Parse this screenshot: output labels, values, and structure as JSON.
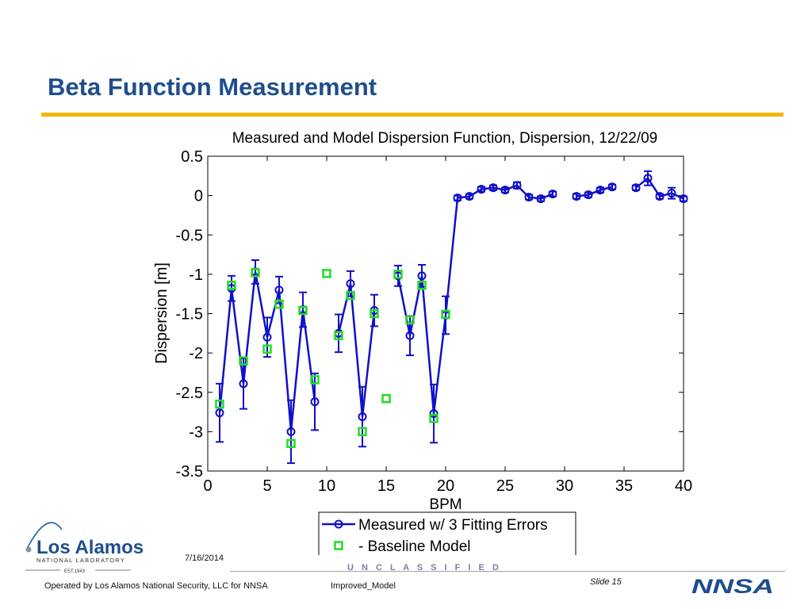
{
  "slide": {
    "title": "Beta Function Measurement",
    "date": "7/16/2014",
    "classification": "U N C L A S S I F I E D",
    "slide_number": "Slide 15",
    "operator": "Operated by Los Alamos National Security, LLC for NNSA",
    "filename": "Improved_Model"
  },
  "logo": {
    "name_main": "Los Alamos",
    "name_sub": "NATIONAL LABORATORY",
    "established": "EST.1943",
    "partner_logo_text": "NNSA"
  },
  "colors": {
    "title": "#1f4e8c",
    "rule": "#f5b800",
    "measured": "#1010c8",
    "baseline": "#22dd22"
  },
  "chart_data": {
    "type": "line",
    "title": "Measured and Model Dispersion Function, Dispersion, 12/22/09",
    "xlabel": "BPM",
    "ylabel": "Dispersion [m]",
    "xlim": [
      0,
      40
    ],
    "ylim": [
      -3.5,
      0.5
    ],
    "xticks": [
      "0",
      "5",
      "10",
      "15",
      "20",
      "25",
      "30",
      "35",
      "40"
    ],
    "yticks": [
      "0.5",
      "0",
      "-0.5",
      "-1",
      "-1.5",
      "-2",
      "-2.5",
      "-3",
      "-3.5"
    ],
    "grid": false,
    "legend_position": "bottom-right",
    "series": [
      {
        "name": "Measured w/ 3 Fitting Errors",
        "segments": [
          {
            "x": [
              1,
              2,
              3,
              4,
              5,
              6,
              7,
              8,
              9,
              10,
              11,
              12,
              13,
              14,
              15,
              16,
              17,
              18,
              19,
              20,
              21,
              22,
              23,
              24,
              25,
              26,
              27,
              28,
              29
            ],
            "y": [
              -2.76,
              -1.18,
              -2.39,
              -0.97,
              -1.8,
              -1.2,
              -3.0,
              -1.45,
              -2.62,
              null,
              -1.75,
              -1.12,
              -2.81,
              -1.46,
              null,
              -1.02,
              -1.78,
              -1.02,
              -2.77,
              -1.52,
              -0.03,
              -0.01,
              0.08,
              0.1,
              0.07,
              0.13,
              -0.02,
              -0.04,
              0.02
            ],
            "err": [
              0.37,
              0.16,
              0.32,
              0.15,
              0.25,
              0.17,
              0.4,
              0.22,
              0.36,
              null,
              0.24,
              0.16,
              0.38,
              0.2,
              null,
              0.13,
              0.25,
              0.14,
              0.37,
              0.24,
              0.03,
              0.03,
              0.03,
              0.03,
              0.03,
              0.04,
              0.03,
              0.03,
              0.03
            ]
          },
          {
            "x": [
              31,
              32,
              33,
              34
            ],
            "y": [
              -0.01,
              0.01,
              0.07,
              0.11
            ],
            "err": [
              0.03,
              0.03,
              0.03,
              0.03
            ]
          },
          {
            "x": [
              36,
              37,
              38,
              39,
              40
            ],
            "y": [
              0.1,
              0.22,
              -0.01,
              0.03,
              -0.04
            ],
            "err": [
              0.03,
              0.09,
              0.03,
              0.07,
              0.03
            ]
          }
        ]
      },
      {
        "name": "- Baseline Model",
        "x": [
          1,
          2,
          3,
          4,
          5,
          6,
          7,
          8,
          9,
          10,
          11,
          12,
          13,
          14,
          15,
          16,
          17,
          18,
          19,
          20
        ],
        "y": [
          -2.65,
          -1.14,
          -2.1,
          -0.98,
          -1.95,
          -1.38,
          -3.15,
          -1.46,
          -2.34,
          -0.99,
          -1.78,
          -1.27,
          -3.0,
          -1.5,
          -2.58,
          -1.0,
          -1.58,
          -1.14,
          -2.83,
          -1.51
        ]
      }
    ]
  }
}
